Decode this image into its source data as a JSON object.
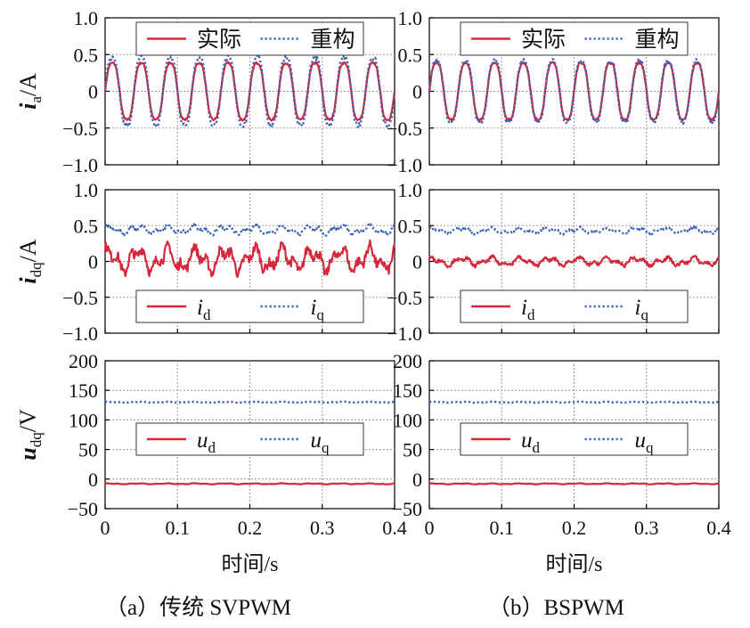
{
  "figure_captions": {
    "a": "（a）传统 SVPWM",
    "b": "（b）BSPWM"
  },
  "x_axis": {
    "label": "时间/s",
    "ticks": [
      "0",
      "0.1",
      "0.2",
      "0.3",
      "0.4"
    ],
    "range": [
      0,
      0.4
    ]
  },
  "colors": {
    "actual": "#d6283c",
    "reconstructed": "#3a62b0",
    "grid": "#9a9a9a",
    "frame": "#000000"
  },
  "rows": [
    {
      "id": "id",
      "ylabel_main": "i",
      "ylabel_sub": "a",
      "ylabel_unit": "/A",
      "yrange": [
        -1.0,
        1.0
      ],
      "yticks": [
        -1.0,
        -0.5,
        0,
        0.5,
        1.0
      ],
      "ytick_labels": [
        "−1.0",
        "−0.5",
        "0",
        "0.5",
        "1.0"
      ],
      "legend": {
        "position": "top",
        "entries": [
          {
            "text": "实际",
            "style": "solid"
          },
          {
            "text": "重构",
            "style": "dotted"
          }
        ]
      }
    },
    {
      "id": "idq",
      "ylabel_main": "i",
      "ylabel_sub": "dq",
      "ylabel_unit": "/A",
      "yrange": [
        -1.0,
        1.0
      ],
      "yticks": [
        -1.0,
        -0.5,
        0,
        0.5,
        1.0
      ],
      "ytick_labels": [
        "−1.0",
        "−0.5",
        "0",
        "0.5",
        "1.0"
      ],
      "legend": {
        "position": "bottom",
        "entries": [
          {
            "main": "i",
            "sub": "d",
            "style": "solid"
          },
          {
            "main": "i",
            "sub": "q",
            "style": "dotted"
          }
        ]
      }
    },
    {
      "id": "udq",
      "ylabel_main": "u",
      "ylabel_sub": "dq",
      "ylabel_unit": "/V",
      "yrange": [
        -50,
        200
      ],
      "yticks": [
        -50,
        0,
        50,
        100,
        150,
        200
      ],
      "ytick_labels": [
        "−50",
        "0",
        "50",
        "100",
        "150",
        "200"
      ],
      "legend": {
        "position": "middle",
        "entries": [
          {
            "main": "u",
            "sub": "d",
            "style": "solid"
          },
          {
            "main": "u",
            "sub": "q",
            "style": "dotted"
          }
        ]
      }
    }
  ],
  "chart_data": [
    {
      "type": "line",
      "panel": "a",
      "row": "id",
      "x_range": [
        0,
        0.4
      ],
      "ylim": [
        -1.0,
        1.0
      ],
      "grid": true,
      "series": [
        {
          "name": "实际",
          "style": "solid",
          "waveform": "sinusoid",
          "amplitude": 0.42,
          "offset": 0.0,
          "frequency_hz": 25
        },
        {
          "name": "重构",
          "style": "dotted",
          "waveform": "sinusoid",
          "amplitude": 0.5,
          "offset": 0.0,
          "frequency_hz": 25,
          "note": "peaks approx 0.45 / -0.57"
        }
      ]
    },
    {
      "type": "line",
      "panel": "a",
      "row": "idq",
      "x_range": [
        0,
        0.4
      ],
      "ylim": [
        -1.0,
        1.0
      ],
      "grid": true,
      "series": [
        {
          "name": "i_d",
          "style": "solid",
          "mean": 0.03,
          "ripple_pp": 0.45
        },
        {
          "name": "i_q",
          "style": "dotted",
          "mean": 0.44,
          "ripple_pp": 0.15
        }
      ]
    },
    {
      "type": "line",
      "panel": "a",
      "row": "udq",
      "x_range": [
        0,
        0.4
      ],
      "ylim": [
        -50,
        200
      ],
      "grid": true,
      "series": [
        {
          "name": "u_d",
          "style": "solid",
          "mean": -8,
          "ripple_pp": 2
        },
        {
          "name": "u_q",
          "style": "dotted",
          "mean": 130,
          "ripple_pp": 2
        }
      ]
    },
    {
      "type": "line",
      "panel": "b",
      "row": "id",
      "x_range": [
        0,
        0.4
      ],
      "ylim": [
        -1.0,
        1.0
      ],
      "grid": true,
      "series": [
        {
          "name": "实际",
          "style": "solid",
          "waveform": "sinusoid",
          "amplitude": 0.42,
          "offset": 0.0,
          "frequency_hz": 25
        },
        {
          "name": "重构",
          "style": "dotted",
          "waveform": "sinusoid",
          "amplitude": 0.45,
          "offset": 0.0,
          "frequency_hz": 25
        }
      ]
    },
    {
      "type": "line",
      "panel": "b",
      "row": "idq",
      "x_range": [
        0,
        0.4
      ],
      "ylim": [
        -1.0,
        1.0
      ],
      "grid": true,
      "series": [
        {
          "name": "i_d",
          "style": "solid",
          "mean": 0.0,
          "ripple_pp": 0.15
        },
        {
          "name": "i_q",
          "style": "dotted",
          "mean": 0.43,
          "ripple_pp": 0.1
        }
      ]
    },
    {
      "type": "line",
      "panel": "b",
      "row": "udq",
      "x_range": [
        0,
        0.4
      ],
      "ylim": [
        -50,
        200
      ],
      "grid": true,
      "series": [
        {
          "name": "u_d",
          "style": "solid",
          "mean": -8,
          "ripple_pp": 2
        },
        {
          "name": "u_q",
          "style": "dotted",
          "mean": 130,
          "ripple_pp": 2
        }
      ]
    }
  ]
}
